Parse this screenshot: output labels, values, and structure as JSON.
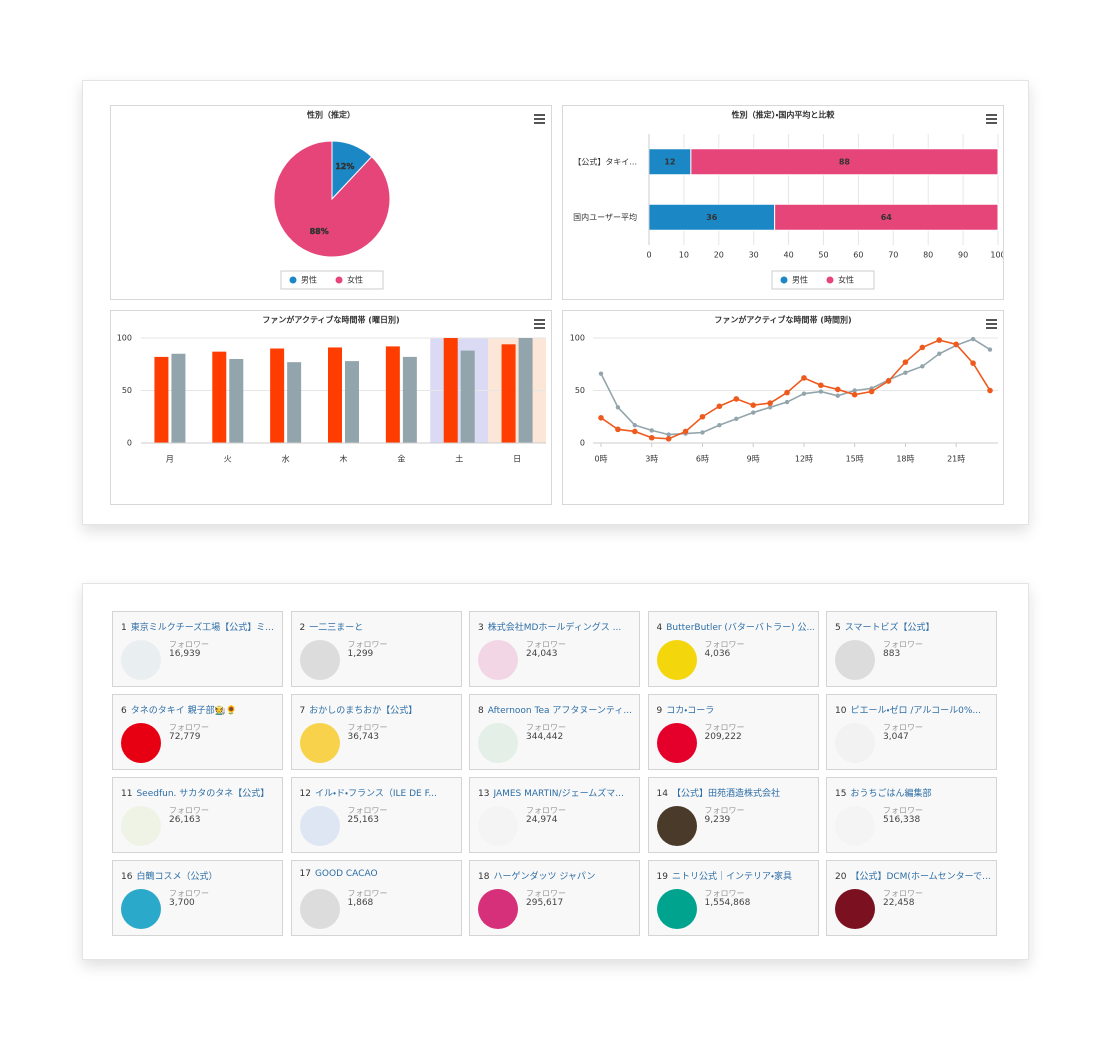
{
  "chart_data": [
    {
      "type": "pie",
      "title": "性別（推定）",
      "categories": [
        "男性",
        "女性"
      ],
      "values": [
        12,
        88
      ],
      "value_labels": [
        "12%",
        "88%"
      ],
      "colors": [
        "#1b87c5",
        "#e6457a"
      ],
      "legend": "bottom"
    },
    {
      "type": "bar",
      "orientation": "horizontal",
      "stacked": true,
      "title": "性別（推定）・国内平均と比較",
      "categories": [
        "【公式】タキイ...",
        "国内ユーザー平均"
      ],
      "series": [
        {
          "name": "男性",
          "color": "#1b87c5",
          "values": [
            12,
            36
          ]
        },
        {
          "name": "女性",
          "color": "#e6457a",
          "values": [
            88,
            64
          ]
        }
      ],
      "xlim": [
        0,
        100
      ],
      "xticks": [
        0,
        10,
        20,
        30,
        40,
        50,
        60,
        70,
        80,
        90,
        100
      ],
      "grid": true,
      "legend": "bottom"
    },
    {
      "type": "bar",
      "title": "ファンがアクティブな時間帯 (曜日別)",
      "categories": [
        "月",
        "火",
        "水",
        "木",
        "金",
        "土",
        "日"
      ],
      "series": [
        {
          "color": "#ff3d00",
          "values": [
            82,
            87,
            90,
            91,
            92,
            100,
            94
          ]
        },
        {
          "color": "#93a5ac",
          "values": [
            85,
            80,
            77,
            78,
            82,
            88,
            100
          ]
        }
      ],
      "ylim": [
        0,
        100
      ],
      "yticks": [
        0,
        50,
        100
      ],
      "grid": true,
      "plot_bands": [
        {
          "index": 5,
          "color": "#dadaf4"
        },
        {
          "index": 6,
          "color": "#fbe6d7"
        }
      ]
    },
    {
      "type": "line",
      "title": "ファンがアクティブな時間帯 (時間別)",
      "x": [
        0,
        1,
        2,
        3,
        4,
        5,
        6,
        7,
        8,
        9,
        10,
        11,
        12,
        13,
        14,
        15,
        16,
        17,
        18,
        19,
        20,
        21,
        22,
        23
      ],
      "series": [
        {
          "color": "#ee5a1e",
          "values": [
            24,
            13,
            11,
            5,
            4,
            11,
            25,
            35,
            42,
            36,
            38,
            48,
            62,
            55,
            51,
            46,
            49,
            59,
            77,
            91,
            98,
            94,
            76,
            50
          ]
        },
        {
          "color": "#93a5ac",
          "values": [
            66,
            34,
            17,
            12,
            8,
            9,
            10,
            17,
            23,
            29,
            34,
            39,
            47,
            49,
            45,
            50,
            52,
            60,
            67,
            73,
            85,
            93,
            99,
            89
          ]
        }
      ],
      "xlim": [
        0,
        23
      ],
      "xticks": [
        {
          "value": 0,
          "label": "0時"
        },
        {
          "value": 3,
          "label": "3時"
        },
        {
          "value": 6,
          "label": "6時"
        },
        {
          "value": 9,
          "label": "9時"
        },
        {
          "value": 12,
          "label": "12時"
        },
        {
          "value": 15,
          "label": "15時"
        },
        {
          "value": 18,
          "label": "18時"
        },
        {
          "value": 21,
          "label": "21時"
        }
      ],
      "ylim": [
        0,
        100
      ],
      "yticks": [
        0,
        50,
        100
      ],
      "grid": true
    }
  ],
  "ranking": {
    "follower_label": "フォロワー",
    "items": [
      {
        "rank": 1,
        "name": "東京ミルクチーズ工場【公式】ミ...",
        "followers": "16,939",
        "avatar_color": "#e9eef0"
      },
      {
        "rank": 2,
        "name": "一二三まーと",
        "followers": "1,299",
        "avatar_color": "#dcdcdc"
      },
      {
        "rank": 3,
        "name": "株式会社MDホールディングス ...",
        "followers": "24,043",
        "avatar_color": "#f3d6e6"
      },
      {
        "rank": 4,
        "name": "ButterButler (バターバトラー) 公...",
        "followers": "4,036",
        "avatar_color": "#f4d60c"
      },
      {
        "rank": 5,
        "name": "スマートビズ【公式】",
        "followers": "883",
        "avatar_color": "#dcdcdc"
      },
      {
        "rank": 6,
        "name": "タネのタキイ 親子部🧑‍🌾🌻",
        "followers": "72,779",
        "avatar_color": "#e60012"
      },
      {
        "rank": 7,
        "name": "おかしのまちおか【公式】",
        "followers": "36,743",
        "avatar_color": "#f7d24a"
      },
      {
        "rank": 8,
        "name": "Afternoon Tea アフタヌーンティ...",
        "followers": "344,442",
        "avatar_color": "#e3efe7"
      },
      {
        "rank": 9,
        "name": "コカ・コーラ",
        "followers": "209,222",
        "avatar_color": "#e4002b"
      },
      {
        "rank": 10,
        "name": "ピエール・ゼロ /アルコール0%...",
        "followers": "3,047",
        "avatar_color": "#f2f2f2"
      },
      {
        "rank": 11,
        "name": "Seedfun. サカタのタネ【公式】",
        "followers": "26,163",
        "avatar_color": "#eef3e6"
      },
      {
        "rank": 12,
        "name": "イル・ド・フランス（ILE DE F...",
        "followers": "25,163",
        "avatar_color": "#dfe6f3"
      },
      {
        "rank": 13,
        "name": "JAMES MARTIN/ジェームズマ...",
        "followers": "24,974",
        "avatar_color": "#f4f4f4"
      },
      {
        "rank": 14,
        "name": "【公式】田苑酒造株式会社",
        "followers": "9,239",
        "avatar_color": "#4a3a2a"
      },
      {
        "rank": 15,
        "name": "おうちごはん編集部",
        "followers": "516,338",
        "avatar_color": "#f4f4f4"
      },
      {
        "rank": 16,
        "name": "白鶴コスメ（公式）",
        "followers": "3,700",
        "avatar_color": "#2aa9cb"
      },
      {
        "rank": 17,
        "name": "GOOD CACAO",
        "followers": "1,868",
        "avatar_color": "#dcdcdc"
      },
      {
        "rank": 18,
        "name": "ハーゲンダッツ ジャパン",
        "followers": "295,617",
        "avatar_color": "#d6307a"
      },
      {
        "rank": 19,
        "name": "ニトリ公式｜インテリア・家具",
        "followers": "1,554,868",
        "avatar_color": "#00a48e"
      },
      {
        "rank": 20,
        "name": "【公式】DCM(ホームセンターで...",
        "followers": "22,458",
        "avatar_color": "#7a1020"
      }
    ]
  }
}
